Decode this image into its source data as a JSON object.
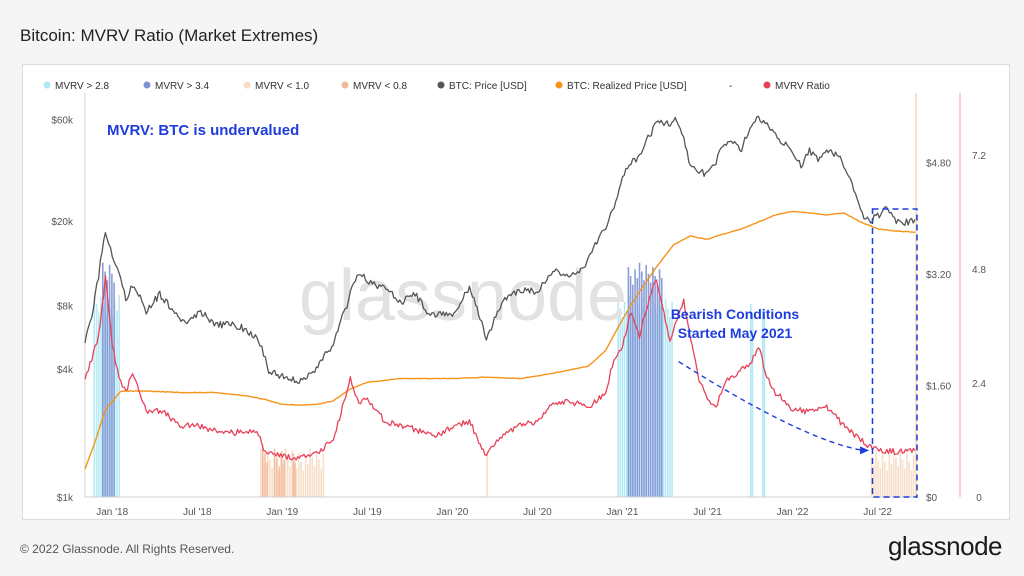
{
  "page": {
    "title": "Bitcoin: MVRV Ratio (Market Extremes)",
    "copyright": "© 2022 Glassnode. All Rights Reserved.",
    "logo": "glassnode",
    "watermark": "glassnode"
  },
  "colors": {
    "mvrv_gt_28": "#aee8f3",
    "mvrv_gt_34": "#7f93d4",
    "mvrv_lt_10": "#f7dcc4",
    "mvrv_lt_08": "#f2b89a",
    "price": "#555555",
    "realized": "#f7931a",
    "mvrv": "#e8425a",
    "annotation": "#1f3cdc"
  },
  "chart_data": {
    "type": "line",
    "title": "Bitcoin: MVRV Ratio (Market Extremes)",
    "legend": [
      {
        "label": "MVRV > 2.8",
        "kind": "area",
        "color": "#aee8f3"
      },
      {
        "label": "MVRV > 3.4",
        "kind": "area",
        "color": "#7f93d4"
      },
      {
        "label": "MVRV < 1.0",
        "kind": "area",
        "color": "#f7dcc4"
      },
      {
        "label": "MVRV < 0.8",
        "kind": "area",
        "color": "#f2b89a"
      },
      {
        "label": "BTC: Price [USD]",
        "kind": "line",
        "color": "#555555"
      },
      {
        "label": "BTC: Realized Price [USD]",
        "kind": "line",
        "color": "#f7931a"
      },
      {
        "label": "-",
        "kind": "text",
        "color": "#555555"
      },
      {
        "label": "MVRV Ratio",
        "kind": "line",
        "color": "#e8425a"
      }
    ],
    "x_ticks": [
      "Jan '18",
      "Jul '18",
      "Jan '19",
      "Jul '19",
      "Jan '20",
      "Jul '20",
      "Jan '21",
      "Jul '21",
      "Jan '22",
      "Jul '22"
    ],
    "x_tick_times": [
      2018.0,
      2018.5,
      2019.0,
      2019.5,
      2020.0,
      2020.5,
      2021.0,
      2021.5,
      2022.0,
      2022.5
    ],
    "x_range": [
      2017.84,
      2022.72
    ],
    "y_left": {
      "scale": "log",
      "range": [
        1000,
        80000
      ],
      "ticks": [
        1000,
        4000,
        8000,
        20000,
        60000
      ],
      "labels": [
        "$1k",
        "$4k",
        "$8k",
        "$20k",
        "$60k"
      ]
    },
    "y_right1": {
      "range": [
        0,
        5.8
      ],
      "ticks": [
        0,
        1.6,
        3.2,
        4.8
      ],
      "labels": [
        "$0",
        "$1.60",
        "$3.20",
        "$4.80"
      ]
    },
    "y_right2": {
      "range": [
        0,
        8.5
      ],
      "ticks": [
        0,
        2.4,
        4.8,
        7.2
      ],
      "labels": [
        "0",
        "2.4",
        "4.8",
        "7.2"
      ]
    },
    "series": [
      {
        "name": "BTC: Price [USD]",
        "axis": "left",
        "t": [
          2017.84,
          2017.88,
          2017.92,
          2017.96,
          2018.0,
          2018.04,
          2018.08,
          2018.12,
          2018.2,
          2018.28,
          2018.36,
          2018.44,
          2018.52,
          2018.6,
          2018.68,
          2018.76,
          2018.86,
          2018.92,
          2019.0,
          2019.1,
          2019.2,
          2019.3,
          2019.38,
          2019.45,
          2019.5,
          2019.55,
          2019.62,
          2019.7,
          2019.78,
          2019.85,
          2019.92,
          2020.0,
          2020.1,
          2020.2,
          2020.22,
          2020.3,
          2020.4,
          2020.5,
          2020.6,
          2020.7,
          2020.8,
          2020.85,
          2020.9,
          2020.95,
          2021.0,
          2021.05,
          2021.1,
          2021.15,
          2021.2,
          2021.28,
          2021.32,
          2021.36,
          2021.4,
          2021.45,
          2021.5,
          2021.55,
          2021.6,
          2021.65,
          2021.7,
          2021.75,
          2021.8,
          2021.85,
          2021.9,
          2021.95,
          2022.0,
          2022.05,
          2022.1,
          2022.15,
          2022.2,
          2022.28,
          2022.35,
          2022.4,
          2022.45,
          2022.5,
          2022.55,
          2022.6,
          2022.65,
          2022.72
        ],
        "values": [
          5500,
          7000,
          11000,
          17500,
          14000,
          11000,
          8500,
          10000,
          7500,
          9000,
          7500,
          6500,
          7500,
          6500,
          6500,
          6300,
          5500,
          3900,
          3700,
          3500,
          4000,
          5200,
          8000,
          11500,
          10500,
          10000,
          9500,
          8300,
          9000,
          7500,
          7200,
          7200,
          9500,
          5500,
          6000,
          8500,
          9500,
          9200,
          11500,
          10800,
          13000,
          16000,
          18500,
          23000,
          32000,
          38000,
          40000,
          49000,
          57000,
          58000,
          60000,
          49000,
          36000,
          34000,
          33000,
          38000,
          47000,
          46000,
          44000,
          55000,
          61000,
          57000,
          50000,
          47000,
          42000,
          36000,
          43000,
          39000,
          43000,
          40000,
          30000,
          22000,
          20000,
          21000,
          23000,
          20000,
          19500,
          20300
        ]
      },
      {
        "name": "BTC: Realized Price [USD]",
        "axis": "right1",
        "t": [
          2017.84,
          2017.9,
          2017.96,
          2018.05,
          2018.2,
          2018.4,
          2018.6,
          2018.8,
          2018.9,
          2019.0,
          2019.1,
          2019.2,
          2019.3,
          2019.4,
          2019.5,
          2019.7,
          2019.9,
          2020.0,
          2020.2,
          2020.4,
          2020.6,
          2020.8,
          2020.9,
          2021.0,
          2021.1,
          2021.2,
          2021.3,
          2021.4,
          2021.45,
          2021.5,
          2021.6,
          2021.7,
          2021.8,
          2021.9,
          2022.0,
          2022.1,
          2022.2,
          2022.3,
          2022.4,
          2022.5,
          2022.6,
          2022.72
        ],
        "values": [
          0.4,
          0.8,
          1.25,
          1.52,
          1.52,
          1.5,
          1.5,
          1.45,
          1.4,
          1.33,
          1.32,
          1.33,
          1.38,
          1.55,
          1.65,
          1.7,
          1.7,
          1.7,
          1.72,
          1.7,
          1.78,
          1.88,
          2.1,
          2.55,
          2.95,
          3.3,
          3.62,
          3.75,
          3.72,
          3.7,
          3.78,
          3.85,
          3.95,
          4.05,
          4.1,
          4.08,
          4.05,
          4.08,
          3.95,
          3.85,
          3.82,
          3.8
        ]
      },
      {
        "name": "MVRV Ratio",
        "axis": "right2",
        "t": [
          2017.84,
          2017.88,
          2017.92,
          2017.96,
          2018.0,
          2018.04,
          2018.08,
          2018.12,
          2018.2,
          2018.3,
          2018.4,
          2018.5,
          2018.6,
          2018.7,
          2018.8,
          2018.86,
          2018.9,
          2019.0,
          2019.1,
          2019.2,
          2019.3,
          2019.4,
          2019.45,
          2019.5,
          2019.6,
          2019.7,
          2019.8,
          2019.9,
          2020.0,
          2020.1,
          2020.2,
          2020.25,
          2020.3,
          2020.4,
          2020.5,
          2020.6,
          2020.7,
          2020.8,
          2020.9,
          2020.95,
          2021.0,
          2021.05,
          2021.1,
          2021.15,
          2021.2,
          2021.28,
          2021.32,
          2021.36,
          2021.4,
          2021.45,
          2021.5,
          2021.55,
          2021.6,
          2021.7,
          2021.75,
          2021.8,
          2021.85,
          2021.9,
          2022.0,
          2022.1,
          2022.2,
          2022.3,
          2022.4,
          2022.45,
          2022.5,
          2022.6,
          2022.72
        ],
        "values": [
          2.5,
          2.9,
          3.4,
          4.6,
          3.2,
          2.5,
          2.2,
          2.6,
          1.8,
          1.8,
          1.5,
          1.5,
          1.4,
          1.35,
          1.4,
          1.3,
          0.95,
          0.85,
          0.82,
          0.9,
          1.2,
          2.5,
          2.0,
          2.1,
          1.6,
          1.5,
          1.4,
          1.3,
          1.45,
          1.6,
          0.85,
          1.1,
          1.3,
          1.5,
          1.6,
          2.0,
          2.0,
          1.9,
          2.2,
          2.9,
          3.2,
          3.9,
          3.4,
          4.1,
          4.6,
          3.3,
          3.7,
          4.1,
          3.4,
          2.5,
          2.0,
          1.9,
          2.4,
          2.7,
          2.8,
          3.2,
          2.5,
          2.2,
          1.85,
          1.8,
          1.9,
          1.5,
          1.2,
          1.05,
          1.0,
          0.95,
          0.98
        ]
      }
    ],
    "bands": [
      {
        "name": "MVRV > 2.8",
        "color": "#aee8f3",
        "ranges": [
          [
            2017.89,
            2018.05
          ],
          [
            2020.97,
            2021.3
          ],
          [
            2021.75,
            2021.77
          ],
          [
            2021.82,
            2021.84
          ]
        ]
      },
      {
        "name": "MVRV > 3.4",
        "color": "#7f93d4",
        "ranges": [
          [
            2017.94,
            2018.02
          ],
          [
            2021.03,
            2021.24
          ]
        ]
      },
      {
        "name": "MVRV < 1.0",
        "color": "#f7dcc4",
        "ranges": [
          [
            2018.87,
            2019.25
          ],
          [
            2020.2,
            2020.21
          ],
          [
            2022.46,
            2022.72
          ]
        ]
      },
      {
        "name": "MVRV < 0.8",
        "color": "#f2b89a",
        "ranges": [
          [
            2018.88,
            2018.92
          ],
          [
            2018.95,
            2019.02
          ],
          [
            2019.06,
            2019.08
          ]
        ]
      }
    ],
    "annotations": [
      {
        "text": "MVRV: BTC is undervalued"
      },
      {
        "text": "Bearish Conditions"
      },
      {
        "text": "Started May 2021"
      }
    ],
    "highlight_box": {
      "x_range": [
        2022.47,
        2022.72
      ]
    },
    "arrow": {
      "from_t": 2021.33,
      "from_v": 2.85,
      "to_t": 2022.45,
      "to_v": 0.98
    }
  }
}
